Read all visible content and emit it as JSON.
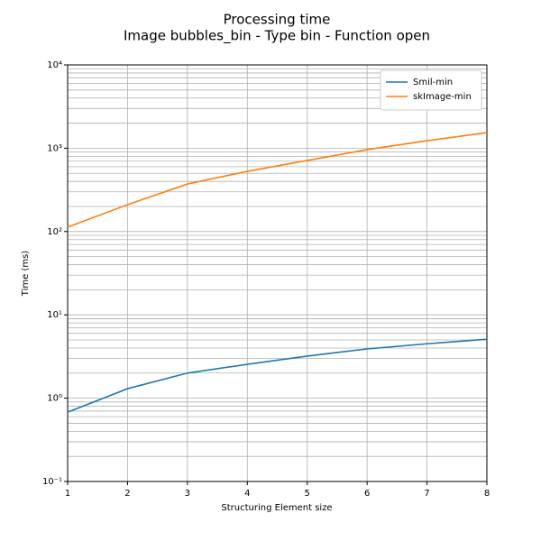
{
  "chart_data": {
    "type": "line",
    "title": "Processing time",
    "subtitle": "Image bubbles_bin - Type bin - Function open",
    "x_label": "Structuring Element size",
    "y_label": "Time (ms)",
    "x": [
      1,
      2,
      3,
      4,
      5,
      6,
      7,
      8
    ],
    "series": [
      {
        "name": "Smil-min",
        "color": "#1f77b4",
        "values": [
          0.68,
          1.3,
          2.0,
          2.55,
          3.2,
          3.9,
          4.5,
          5.1
        ]
      },
      {
        "name": "skImage-min",
        "color": "#ff7f0e",
        "values": [
          113,
          210,
          372,
          528,
          713,
          962,
          1230,
          1540
        ]
      }
    ],
    "xlim": [
      1,
      8
    ],
    "xticks": [
      1,
      2,
      3,
      4,
      5,
      6,
      7,
      8
    ],
    "ylim": [
      0.1,
      10000
    ],
    "yticks": [
      {
        "value": 0.1,
        "label": "10⁻¹"
      },
      {
        "value": 1,
        "label": "10⁰"
      },
      {
        "value": 10,
        "label": "10¹"
      },
      {
        "value": 100,
        "label": "10²"
      },
      {
        "value": 1000,
        "label": "10³"
      },
      {
        "value": 10000,
        "label": "10⁴"
      }
    ],
    "y_scale": "log",
    "grid": true,
    "legend": "upper right"
  }
}
